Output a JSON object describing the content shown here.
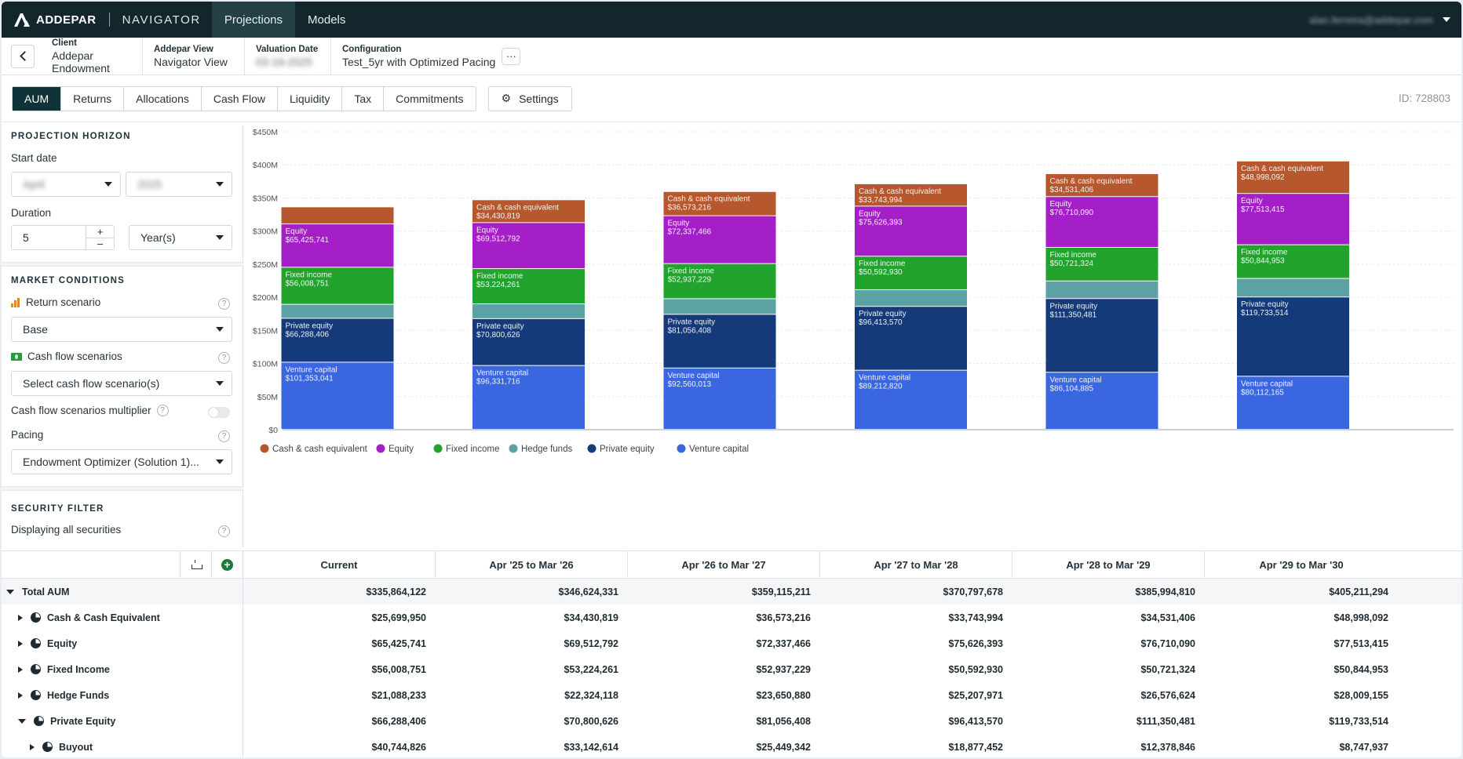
{
  "topnav": {
    "brand": "ADDEPAR",
    "product": "NAVIGATOR",
    "tabs": [
      {
        "label": "Projections",
        "active": true
      },
      {
        "label": "Models",
        "active": false
      }
    ],
    "user_email": "alan.ferreira@addepar.com"
  },
  "context": {
    "client_label": "Client",
    "client_value": "Addepar Endowment",
    "view_label": "Addepar View",
    "view_value": "Navigator View",
    "date_label": "Valuation Date",
    "date_value": "03-19-2025",
    "config_label": "Configuration",
    "config_value": "Test_5yr with Optimized Pacing",
    "more_label": "···"
  },
  "tabs": {
    "items": [
      {
        "label": "AUM",
        "active": true
      },
      {
        "label": "Returns"
      },
      {
        "label": "Allocations"
      },
      {
        "label": "Cash Flow"
      },
      {
        "label": "Liquidity"
      },
      {
        "label": "Tax"
      },
      {
        "label": "Commitments"
      }
    ],
    "settings_label": "Settings",
    "id_label": "ID: 728803"
  },
  "panel": {
    "horizon_title": "PROJECTION HORIZON",
    "start_date_label": "Start date",
    "start_month": "April",
    "start_year": "2025",
    "duration_label": "Duration",
    "duration_value": "5",
    "duration_unit": "Year(s)",
    "market_title": "MARKET CONDITIONS",
    "return_scenario_label": "Return scenario",
    "return_scenario_value": "Base",
    "cash_flow_label": "Cash flow scenarios",
    "cash_flow_placeholder": "Select cash flow scenario(s)",
    "multiplier_label": "Cash flow scenarios multiplier",
    "pacing_label": "Pacing",
    "pacing_value": "Endowment Optimizer (Solution 1)...",
    "security_title": "SECURITY FILTER",
    "security_value": "Displaying all securities",
    "help": "?"
  },
  "chart_data": {
    "type": "bar",
    "stacked": true,
    "categories": [
      "Current",
      "Apr '25 to Mar '26",
      "Apr '26 to Mar '27",
      "Apr '27 to Mar '28",
      "Apr '28 to Mar '29",
      "Apr '29 to Mar '30"
    ],
    "ylim": [
      0,
      450000000
    ],
    "yticks": [
      "$0",
      "$50M",
      "$100M",
      "$150M",
      "$200M",
      "$250M",
      "$300M",
      "$350M",
      "$400M",
      "$450M"
    ],
    "grid": true,
    "legend_position": "bottom-left",
    "series": [
      {
        "name": "Venture capital",
        "color": "#3a66e0",
        "values": [
          101353041,
          96331716,
          92560013,
          89212820,
          86104885,
          80112165
        ]
      },
      {
        "name": "Private equity",
        "color": "#143a7a",
        "values": [
          66288406,
          70800626,
          81056408,
          96413570,
          111350481,
          119733514
        ]
      },
      {
        "name": "Hedge funds",
        "color": "#5ca1a3",
        "values": [
          21088233,
          22324118,
          23650880,
          25207971,
          26576624,
          28009155
        ]
      },
      {
        "name": "Fixed income",
        "color": "#22a32e",
        "values": [
          56008751,
          53224261,
          52937229,
          50592930,
          50721324,
          50844953
        ]
      },
      {
        "name": "Equity",
        "color": "#a41fc8",
        "values": [
          65425741,
          69512792,
          72337466,
          75626393,
          76710090,
          77513415
        ]
      },
      {
        "name": "Cash & cash equivalent",
        "color": "#b6572d",
        "values": [
          25699950,
          34430819,
          36573216,
          33743994,
          34531406,
          48998092
        ]
      }
    ],
    "legend": [
      "Cash & cash equivalent",
      "Equity",
      "Fixed income",
      "Hedge funds",
      "Private equity",
      "Venture capital"
    ]
  },
  "table": {
    "columns": [
      "Current",
      "Apr '25 to Mar '26",
      "Apr '26 to Mar '27",
      "Apr '27 to Mar '28",
      "Apr '28 to Mar '29",
      "Apr '29 to Mar '30"
    ],
    "rows": [
      {
        "name": "Total AUM",
        "level": 0,
        "expanded": true,
        "icon": false,
        "values": [
          "$335,864,122",
          "$346,624,331",
          "$359,115,211",
          "$370,797,678",
          "$385,994,810",
          "$405,211,294"
        ]
      },
      {
        "name": "Cash & Cash Equivalent",
        "level": 1,
        "expanded": false,
        "icon": true,
        "values": [
          "$25,699,950",
          "$34,430,819",
          "$36,573,216",
          "$33,743,994",
          "$34,531,406",
          "$48,998,092"
        ]
      },
      {
        "name": "Equity",
        "level": 1,
        "expanded": false,
        "icon": true,
        "values": [
          "$65,425,741",
          "$69,512,792",
          "$72,337,466",
          "$75,626,393",
          "$76,710,090",
          "$77,513,415"
        ]
      },
      {
        "name": "Fixed Income",
        "level": 1,
        "expanded": false,
        "icon": true,
        "values": [
          "$56,008,751",
          "$53,224,261",
          "$52,937,229",
          "$50,592,930",
          "$50,721,324",
          "$50,844,953"
        ]
      },
      {
        "name": "Hedge Funds",
        "level": 1,
        "expanded": false,
        "icon": true,
        "values": [
          "$21,088,233",
          "$22,324,118",
          "$23,650,880",
          "$25,207,971",
          "$26,576,624",
          "$28,009,155"
        ]
      },
      {
        "name": "Private Equity",
        "level": 1,
        "expanded": true,
        "icon": true,
        "values": [
          "$66,288,406",
          "$70,800,626",
          "$81,056,408",
          "$96,413,570",
          "$111,350,481",
          "$119,733,514"
        ]
      },
      {
        "name": "Buyout",
        "level": 2,
        "expanded": false,
        "icon": true,
        "values": [
          "$40,744,826",
          "$33,142,614",
          "$25,449,342",
          "$18,877,452",
          "$12,378,846",
          "$8,747,937"
        ]
      }
    ]
  }
}
